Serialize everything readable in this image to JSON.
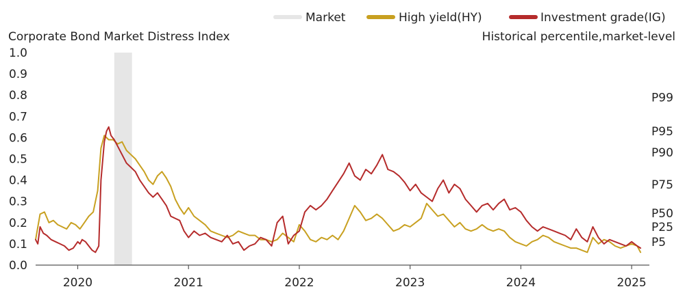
{
  "chart_data": {
    "type": "line",
    "title": "Corporate Bond Market Distress Index",
    "subtitle": "Historical percentile,market-level",
    "xlabel": "",
    "ylabel": "",
    "xlim": [
      2019.62,
      2025.16
    ],
    "ylim": [
      0,
      1
    ],
    "y_ticks": [
      "0.0",
      "0.1",
      "0.2",
      "0.3",
      "0.4",
      "0.5",
      "0.6",
      "0.7",
      "0.8",
      "0.9",
      "1.0"
    ],
    "x_ticks": [
      {
        "value": 2020,
        "label": "2020"
      },
      {
        "value": 2021,
        "label": "2021"
      },
      {
        "value": 2022,
        "label": "2022"
      },
      {
        "value": 2023,
        "label": "2023"
      },
      {
        "value": 2024,
        "label": "2024"
      },
      {
        "value": 2025,
        "label": "2025"
      }
    ],
    "percentile_labels": [
      {
        "label": "P99",
        "value": 0.79
      },
      {
        "label": "P95",
        "value": 0.63
      },
      {
        "label": "P90",
        "value": 0.53
      },
      {
        "label": "P75",
        "value": 0.38
      },
      {
        "label": "P50",
        "value": 0.245
      },
      {
        "label": "P25",
        "value": 0.18
      },
      {
        "label": "P5",
        "value": 0.11
      }
    ],
    "legend": [
      {
        "name": "Market",
        "color": "#e6e6e6",
        "style": "band"
      },
      {
        "name": "High yield(HY)",
        "color": "#c8a020",
        "style": "line"
      },
      {
        "name": "Investment grade(IG)",
        "color": "#b52b2b",
        "style": "line"
      }
    ],
    "shaded_regions": [
      {
        "label": "Market",
        "x0": 2020.33,
        "x1": 2020.49
      }
    ],
    "series": [
      {
        "name": "High yield(HY)",
        "color": "#c8a020",
        "x": [
          2019.62,
          2019.66,
          2019.7,
          2019.74,
          2019.78,
          2019.82,
          2019.86,
          2019.9,
          2019.94,
          2019.98,
          2020.02,
          2020.06,
          2020.1,
          2020.14,
          2020.18,
          2020.21,
          2020.24,
          2020.26,
          2020.28,
          2020.32,
          2020.36,
          2020.4,
          2020.44,
          2020.48,
          2020.52,
          2020.56,
          2020.6,
          2020.64,
          2020.68,
          2020.72,
          2020.76,
          2020.8,
          2020.84,
          2020.88,
          2020.92,
          2020.96,
          2021.0,
          2021.05,
          2021.1,
          2021.15,
          2021.2,
          2021.25,
          2021.3,
          2021.35,
          2021.4,
          2021.45,
          2021.5,
          2021.55,
          2021.6,
          2021.65,
          2021.7,
          2021.75,
          2021.8,
          2021.85,
          2021.9,
          2021.95,
          2022.0,
          2022.05,
          2022.1,
          2022.15,
          2022.2,
          2022.25,
          2022.3,
          2022.35,
          2022.4,
          2022.45,
          2022.5,
          2022.55,
          2022.6,
          2022.65,
          2022.7,
          2022.75,
          2022.8,
          2022.85,
          2022.9,
          2022.95,
          2023.0,
          2023.05,
          2023.1,
          2023.15,
          2023.2,
          2023.25,
          2023.3,
          2023.35,
          2023.4,
          2023.45,
          2023.5,
          2023.55,
          2023.6,
          2023.65,
          2023.7,
          2023.75,
          2023.8,
          2023.85,
          2023.9,
          2023.95,
          2024.0,
          2024.05,
          2024.1,
          2024.15,
          2024.2,
          2024.25,
          2024.3,
          2024.35,
          2024.4,
          2024.45,
          2024.5,
          2024.55,
          2024.6,
          2024.65,
          2024.7,
          2024.75,
          2024.8,
          2024.85,
          2024.9,
          2024.95,
          2025.0,
          2025.05,
          2025.08
        ],
        "values": [
          0.12,
          0.24,
          0.25,
          0.2,
          0.21,
          0.19,
          0.18,
          0.17,
          0.2,
          0.19,
          0.17,
          0.2,
          0.23,
          0.25,
          0.35,
          0.55,
          0.61,
          0.6,
          0.59,
          0.59,
          0.57,
          0.58,
          0.54,
          0.52,
          0.5,
          0.47,
          0.44,
          0.4,
          0.38,
          0.42,
          0.44,
          0.41,
          0.37,
          0.31,
          0.27,
          0.24,
          0.27,
          0.23,
          0.21,
          0.19,
          0.16,
          0.15,
          0.14,
          0.13,
          0.14,
          0.16,
          0.15,
          0.14,
          0.14,
          0.12,
          0.12,
          0.11,
          0.12,
          0.15,
          0.13,
          0.11,
          0.19,
          0.16,
          0.12,
          0.11,
          0.13,
          0.12,
          0.14,
          0.12,
          0.16,
          0.22,
          0.28,
          0.25,
          0.21,
          0.22,
          0.24,
          0.22,
          0.19,
          0.16,
          0.17,
          0.19,
          0.18,
          0.2,
          0.22,
          0.29,
          0.26,
          0.23,
          0.24,
          0.21,
          0.18,
          0.2,
          0.17,
          0.16,
          0.17,
          0.19,
          0.17,
          0.16,
          0.17,
          0.16,
          0.13,
          0.11,
          0.1,
          0.09,
          0.11,
          0.12,
          0.14,
          0.13,
          0.11,
          0.1,
          0.09,
          0.08,
          0.08,
          0.07,
          0.06,
          0.13,
          0.1,
          0.12,
          0.11,
          0.09,
          0.08,
          0.09,
          0.1,
          0.09,
          0.06
        ]
      },
      {
        "name": "Investment grade(IG)",
        "color": "#b52b2b",
        "x": [
          2019.62,
          2019.64,
          2019.66,
          2019.69,
          2019.72,
          2019.76,
          2019.8,
          2019.84,
          2019.88,
          2019.92,
          2019.96,
          2020.0,
          2020.02,
          2020.04,
          2020.07,
          2020.1,
          2020.13,
          2020.16,
          2020.19,
          2020.21,
          2020.24,
          2020.26,
          2020.28,
          2020.3,
          2020.33,
          2020.36,
          2020.4,
          2020.44,
          2020.48,
          2020.52,
          2020.56,
          2020.6,
          2020.64,
          2020.68,
          2020.72,
          2020.76,
          2020.8,
          2020.84,
          2020.88,
          2020.92,
          2020.96,
          2021.0,
          2021.05,
          2021.1,
          2021.15,
          2021.2,
          2021.25,
          2021.3,
          2021.35,
          2021.4,
          2021.45,
          2021.5,
          2021.55,
          2021.6,
          2021.65,
          2021.7,
          2021.75,
          2021.8,
          2021.85,
          2021.9,
          2021.95,
          2022.0,
          2022.05,
          2022.1,
          2022.15,
          2022.2,
          2022.25,
          2022.3,
          2022.35,
          2022.4,
          2022.45,
          2022.5,
          2022.55,
          2022.6,
          2022.65,
          2022.7,
          2022.75,
          2022.8,
          2022.85,
          2022.9,
          2022.95,
          2023.0,
          2023.05,
          2023.1,
          2023.15,
          2023.2,
          2023.25,
          2023.3,
          2023.35,
          2023.4,
          2023.45,
          2023.5,
          2023.55,
          2023.6,
          2023.65,
          2023.7,
          2023.75,
          2023.8,
          2023.85,
          2023.9,
          2023.95,
          2024.0,
          2024.05,
          2024.1,
          2024.15,
          2024.2,
          2024.25,
          2024.3,
          2024.35,
          2024.4,
          2024.45,
          2024.5,
          2024.55,
          2024.6,
          2024.65,
          2024.7,
          2024.75,
          2024.8,
          2024.85,
          2024.9,
          2024.95,
          2025.0,
          2025.05,
          2025.08
        ],
        "values": [
          0.12,
          0.1,
          0.18,
          0.15,
          0.14,
          0.12,
          0.11,
          0.1,
          0.09,
          0.07,
          0.08,
          0.11,
          0.1,
          0.12,
          0.11,
          0.09,
          0.07,
          0.06,
          0.09,
          0.4,
          0.58,
          0.63,
          0.65,
          0.61,
          0.59,
          0.56,
          0.52,
          0.48,
          0.46,
          0.44,
          0.4,
          0.37,
          0.34,
          0.32,
          0.34,
          0.31,
          0.28,
          0.23,
          0.22,
          0.21,
          0.16,
          0.13,
          0.16,
          0.14,
          0.15,
          0.13,
          0.12,
          0.11,
          0.14,
          0.1,
          0.11,
          0.07,
          0.09,
          0.1,
          0.13,
          0.12,
          0.09,
          0.2,
          0.23,
          0.1,
          0.14,
          0.16,
          0.25,
          0.28,
          0.26,
          0.28,
          0.31,
          0.35,
          0.39,
          0.43,
          0.48,
          0.42,
          0.4,
          0.45,
          0.43,
          0.47,
          0.52,
          0.45,
          0.44,
          0.42,
          0.39,
          0.35,
          0.38,
          0.34,
          0.32,
          0.3,
          0.36,
          0.4,
          0.34,
          0.38,
          0.36,
          0.31,
          0.28,
          0.25,
          0.28,
          0.29,
          0.26,
          0.29,
          0.31,
          0.26,
          0.27,
          0.25,
          0.21,
          0.18,
          0.16,
          0.18,
          0.17,
          0.16,
          0.15,
          0.14,
          0.12,
          0.17,
          0.13,
          0.11,
          0.18,
          0.13,
          0.1,
          0.12,
          0.11,
          0.1,
          0.09,
          0.11,
          0.09,
          0.08
        ]
      }
    ]
  }
}
